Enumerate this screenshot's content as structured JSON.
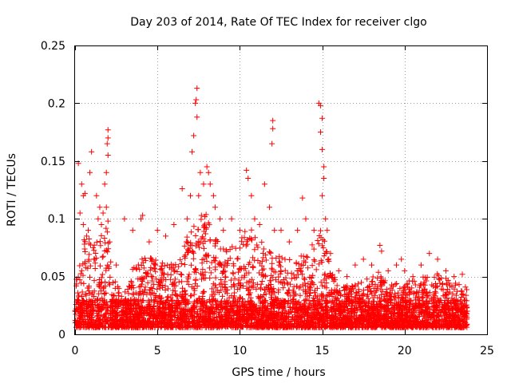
{
  "chart_data": {
    "type": "scatter",
    "title": "Day 203 of 2014, Rate Of TEC Index for receiver clgo",
    "xlabel": "GPS time / hours",
    "ylabel": "ROTI / TECUs",
    "xlim": [
      0,
      25
    ],
    "ylim": [
      0,
      0.25
    ],
    "xticks": [
      0,
      5,
      10,
      15,
      20,
      25
    ],
    "yticks": [
      0,
      0.05,
      0.1,
      0.15,
      0.2,
      0.25
    ],
    "xtick_labels": [
      "0",
      "5",
      "10",
      "15",
      "20",
      "25"
    ],
    "ytick_labels": [
      "0",
      "0.05",
      "0.1",
      "0.15",
      "0.2",
      "0.25"
    ],
    "grid": true,
    "marker": "+",
    "color": "#ff0000",
    "data_extent": {
      "x_min": 0.0,
      "x_max": 23.8
    },
    "series": [
      {
        "points": [
          [
            0.2,
            0.148
          ],
          [
            0.3,
            0.105
          ],
          [
            0.4,
            0.13
          ],
          [
            0.5,
            0.12
          ],
          [
            0.5,
            0.095
          ],
          [
            0.6,
            0.122
          ],
          [
            0.7,
            0.085
          ],
          [
            0.8,
            0.09
          ],
          [
            0.9,
            0.14
          ],
          [
            1.0,
            0.158
          ],
          [
            1.1,
            0.075
          ],
          [
            1.2,
            0.065
          ],
          [
            1.3,
            0.12
          ],
          [
            1.4,
            0.1
          ],
          [
            1.5,
            0.11
          ],
          [
            1.6,
            0.095
          ],
          [
            1.7,
            0.105
          ],
          [
            1.8,
            0.13
          ],
          [
            1.9,
            0.14
          ],
          [
            1.95,
            0.165
          ],
          [
            2.0,
            0.177
          ],
          [
            2.0,
            0.17
          ],
          [
            2.0,
            0.155
          ],
          [
            1.9,
            0.11
          ],
          [
            2.0,
            0.098
          ],
          [
            2.1,
            0.08
          ],
          [
            2.5,
            0.06
          ],
          [
            3.0,
            0.1
          ],
          [
            3.5,
            0.09
          ],
          [
            4.0,
            0.1
          ],
          [
            4.1,
            0.103
          ],
          [
            4.5,
            0.08
          ],
          [
            5.0,
            0.09
          ],
          [
            5.5,
            0.085
          ],
          [
            6.0,
            0.095
          ],
          [
            6.5,
            0.126
          ],
          [
            6.8,
            0.1
          ],
          [
            7.0,
            0.12
          ],
          [
            7.1,
            0.158
          ],
          [
            7.2,
            0.172
          ],
          [
            7.3,
            0.2
          ],
          [
            7.35,
            0.203
          ],
          [
            7.4,
            0.213
          ],
          [
            7.4,
            0.188
          ],
          [
            7.5,
            0.12
          ],
          [
            7.6,
            0.14
          ],
          [
            7.8,
            0.13
          ],
          [
            8.0,
            0.145
          ],
          [
            8.1,
            0.14
          ],
          [
            8.2,
            0.13
          ],
          [
            8.4,
            0.12
          ],
          [
            8.5,
            0.11
          ],
          [
            8.8,
            0.1
          ],
          [
            9.0,
            0.09
          ],
          [
            9.5,
            0.1
          ],
          [
            10.0,
            0.09
          ],
          [
            10.4,
            0.142
          ],
          [
            10.5,
            0.135
          ],
          [
            10.7,
            0.12
          ],
          [
            10.9,
            0.1
          ],
          [
            11.2,
            0.095
          ],
          [
            11.5,
            0.13
          ],
          [
            11.8,
            0.11
          ],
          [
            12.0,
            0.185
          ],
          [
            12.0,
            0.178
          ],
          [
            11.95,
            0.165
          ],
          [
            12.1,
            0.09
          ],
          [
            12.5,
            0.09
          ],
          [
            13.0,
            0.08
          ],
          [
            13.5,
            0.09
          ],
          [
            13.8,
            0.118
          ],
          [
            14.0,
            0.1
          ],
          [
            14.5,
            0.09
          ],
          [
            14.8,
            0.2
          ],
          [
            14.9,
            0.198
          ],
          [
            15.0,
            0.187
          ],
          [
            14.9,
            0.175
          ],
          [
            15.0,
            0.16
          ],
          [
            15.1,
            0.145
          ],
          [
            15.1,
            0.135
          ],
          [
            15.0,
            0.12
          ],
          [
            15.2,
            0.1
          ],
          [
            15.3,
            0.09
          ],
          [
            15.5,
            0.07
          ],
          [
            16.0,
            0.055
          ],
          [
            16.5,
            0.05
          ],
          [
            17.0,
            0.06
          ],
          [
            17.5,
            0.065
          ],
          [
            18.0,
            0.06
          ],
          [
            18.5,
            0.077
          ],
          [
            18.6,
            0.072
          ],
          [
            19.0,
            0.055
          ],
          [
            19.5,
            0.06
          ],
          [
            19.8,
            0.065
          ],
          [
            20.0,
            0.055
          ],
          [
            20.5,
            0.05
          ],
          [
            21.0,
            0.06
          ],
          [
            21.5,
            0.07
          ],
          [
            22.0,
            0.065
          ],
          [
            22.5,
            0.055
          ],
          [
            23.0,
            0.05
          ],
          [
            23.5,
            0.052
          ],
          [
            23.8,
            0.02
          ]
        ]
      }
    ]
  }
}
